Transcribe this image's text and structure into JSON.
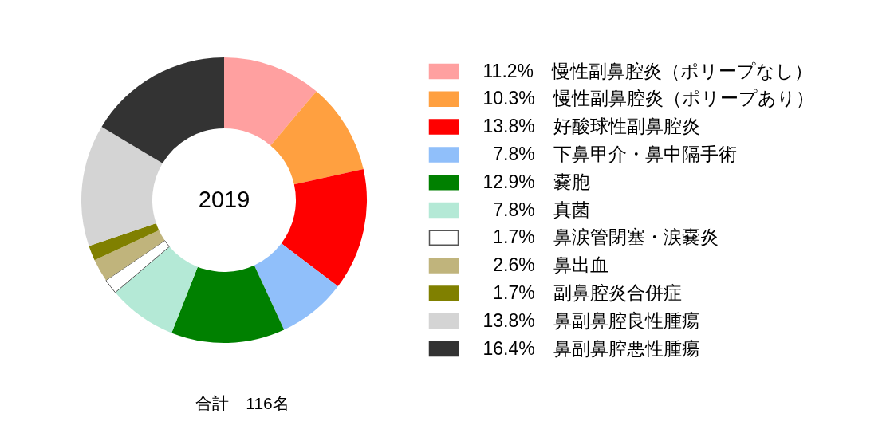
{
  "chart_data": {
    "type": "donut",
    "title": "2019",
    "categories": [
      "慢性副鼻腔炎（ポリープなし）",
      "慢性副鼻腔炎（ポリープあり）",
      "好酸球性副鼻腔炎",
      "下鼻甲介・鼻中隔手術",
      "嚢胞",
      "真菌",
      "鼻涙管閉塞・涙嚢炎",
      "鼻出血",
      "副鼻腔炎合併症",
      "鼻副鼻腔良性腫瘍",
      "鼻副鼻腔悪性腫瘍"
    ],
    "values": [
      11.2,
      10.3,
      13.8,
      7.8,
      12.9,
      7.8,
      1.7,
      2.6,
      1.7,
      13.8,
      16.4
    ],
    "value_labels": [
      "11.2%",
      "10.3%",
      "13.8%",
      "7.8%",
      "12.9%",
      "7.8%",
      "1.7%",
      "2.6%",
      "1.7%",
      "13.8%",
      "16.4%"
    ],
    "colors": [
      "#ffa0a0",
      "#ffa040",
      "#ff0000",
      "#90bffa",
      "#008000",
      "#b4e9d6",
      "#ffffff",
      "#c0b47c",
      "#808000",
      "#d4d4d4",
      "#333333"
    ],
    "legend": "right",
    "annotations": [
      "合計　116名"
    ]
  }
}
